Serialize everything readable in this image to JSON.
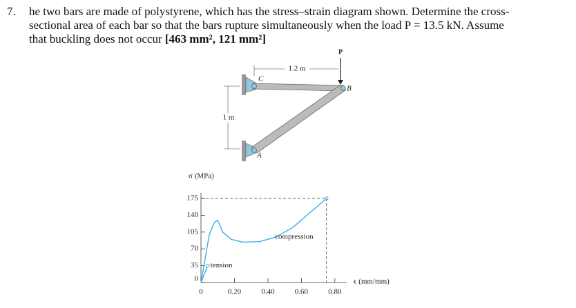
{
  "problem": {
    "number": "7.",
    "lines": [
      "he two bars are made of polystyrene, which has the stress–strain diagram shown. Determine the cross-",
      "sectional area of each bar so that the bars rupture simultaneously when the load P = 13.5 kN. Assume",
      "that buckling does not occur "
    ],
    "answer": "[463 mm², 121 mm²]"
  },
  "figure": {
    "load": "P",
    "points": [
      "C",
      "B",
      "A"
    ],
    "horizontal_dim": "1.2 m",
    "vertical_dim": "1 m"
  },
  "chart_data": {
    "type": "line",
    "y_label": "σ (MPa)",
    "x_label": "ϵ (mm/mm)",
    "color": "#3ab0e0",
    "series": [
      {
        "name": "tension",
        "x": [
          0,
          0.04
        ],
        "values": [
          0,
          35
        ]
      },
      {
        "name": "compression",
        "x": [
          0,
          0.02,
          0.05,
          0.08,
          0.1,
          0.13,
          0.18,
          0.25,
          0.35,
          0.45,
          0.55,
          0.65,
          0.75
        ],
        "values": [
          0,
          40,
          100,
          125,
          130,
          105,
          90,
          84,
          85,
          95,
          115,
          145,
          175
        ]
      }
    ],
    "xlim": [
      0,
      0.85
    ],
    "ylim": [
      0,
      175
    ],
    "xticks": [
      0,
      {
        "value": 0.2,
        "label": "0.20"
      },
      {
        "value": 0.4,
        "label": "0.40"
      },
      {
        "value": 0.6,
        "label": "0.60"
      },
      {
        "value": 0.8,
        "label": "0.80"
      }
    ],
    "yticks": [
      0,
      35,
      70,
      105,
      140,
      175
    ]
  }
}
